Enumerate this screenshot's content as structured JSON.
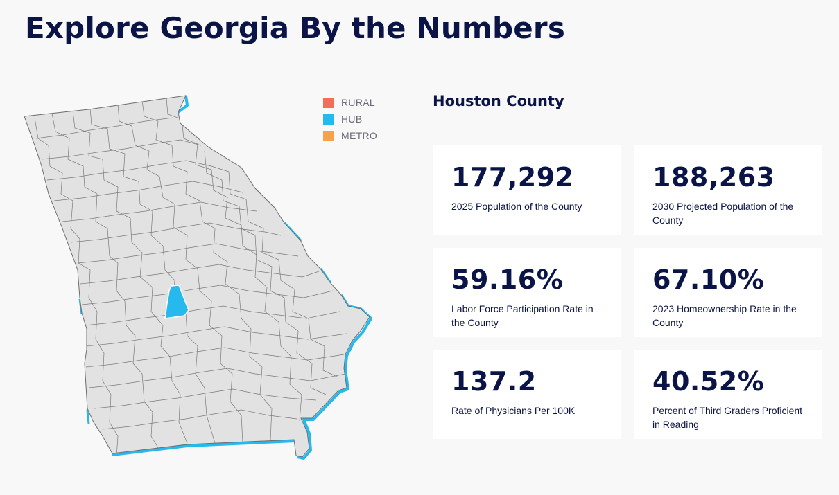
{
  "page": {
    "title": "Explore Georgia By the Numbers"
  },
  "legend": {
    "items": [
      {
        "label": "RURAL",
        "color": "#f46d5a"
      },
      {
        "label": "HUB",
        "color": "#25b9ee"
      },
      {
        "label": "METRO",
        "color": "#f5a34a"
      }
    ]
  },
  "map": {
    "base_color": "#e2e2e2",
    "border_color": "#6d6d6d",
    "highlight_color": "#25b9ee",
    "selected_county": "Houston County"
  },
  "county": {
    "name": "Houston County",
    "stats": [
      {
        "value": "177,292",
        "label": "2025 Population of the County"
      },
      {
        "value": "188,263",
        "label": "2030 Projected Population of the County"
      },
      {
        "value": "59.16%",
        "label": "Labor Force Participation Rate in the County"
      },
      {
        "value": "67.10%",
        "label": "2023 Homeownership Rate in the County"
      },
      {
        "value": "137.2",
        "label": "Rate of Physicians Per 100K"
      },
      {
        "value": "40.52%",
        "label": "Percent of Third Graders Proficient in Reading"
      }
    ]
  }
}
